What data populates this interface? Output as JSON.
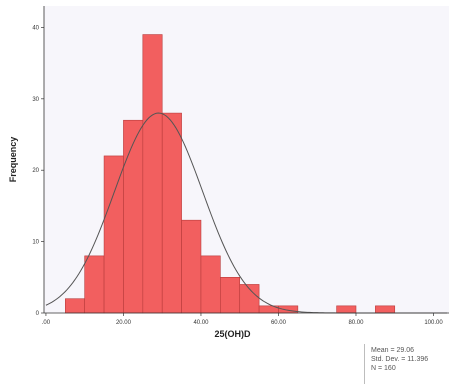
{
  "colors": {
    "plot_background": "#f7f6fb",
    "bar_fill": "#f25f5f",
    "bar_stroke": "#b83b3b",
    "curve": "#555555",
    "axis": "#333333"
  },
  "chart_data": {
    "type": "bar",
    "subtype": "histogram-with-normal-curve",
    "xlabel": "25(OH)D",
    "ylabel": "Frequency",
    "xlim": [
      -0.5,
      104
    ],
    "ylim": [
      0,
      43
    ],
    "x_ticks": [
      0,
      20,
      40,
      60,
      80,
      100
    ],
    "x_tick_labels": [
      ".00",
      "20.00",
      "40.00",
      "60.00",
      "80.00",
      "100.00"
    ],
    "y_ticks": [
      0,
      10,
      20,
      30,
      40
    ],
    "y_tick_labels": [
      "0",
      "10",
      "20",
      "30",
      "40"
    ],
    "bin_width": 5,
    "bin_starts": [
      5,
      10,
      15,
      20,
      25,
      30,
      35,
      40,
      45,
      50,
      55,
      60,
      65,
      70,
      75,
      80,
      85
    ],
    "frequencies": [
      2,
      8,
      22,
      27,
      39,
      28,
      13,
      8,
      5,
      4,
      1,
      1,
      0,
      0,
      1,
      0,
      1
    ],
    "normal_curve": {
      "mean": 29.06,
      "std_dev": 11.396,
      "n": 160
    },
    "grid": false,
    "legend": "none"
  },
  "stats": {
    "mean_text": "Mean = 29.06",
    "sd_text": "Std. Dev. = 11.396",
    "n_text": "N = 160"
  }
}
